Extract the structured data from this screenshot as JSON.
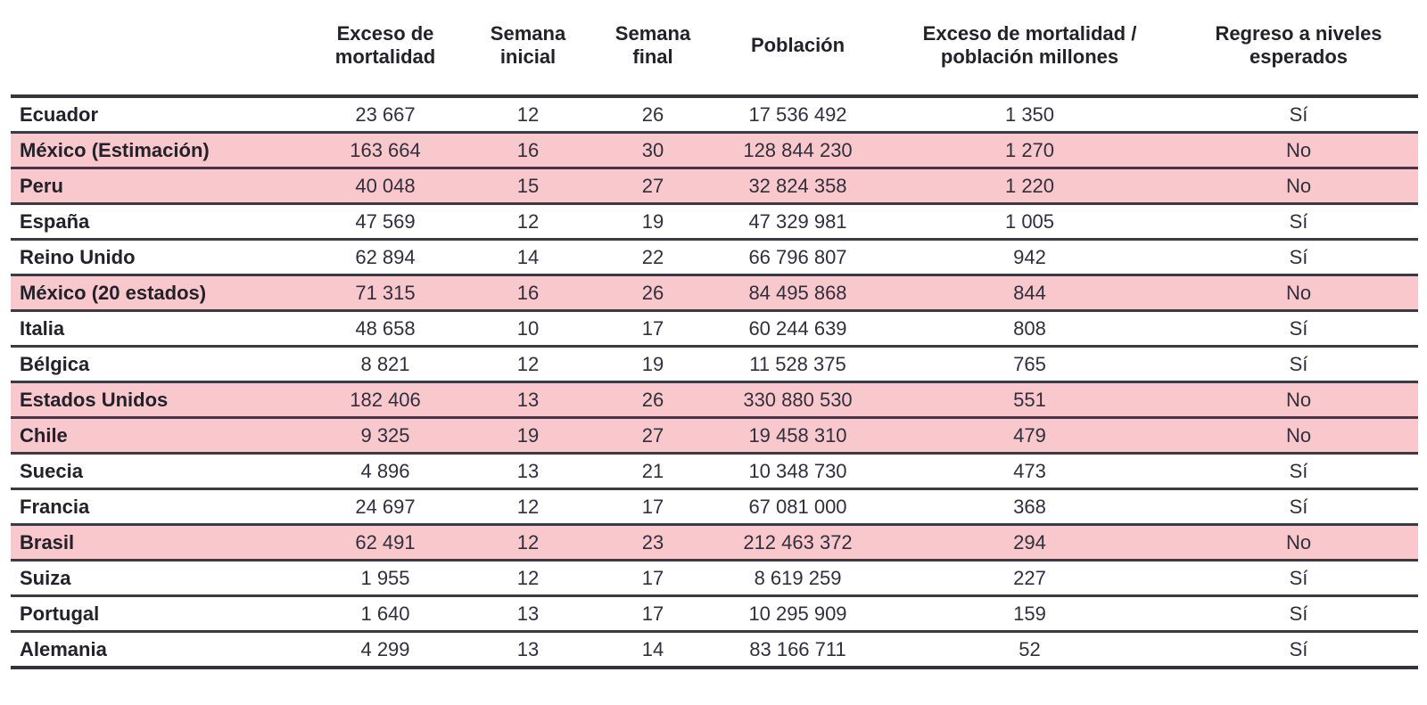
{
  "colors": {
    "background": "#ffffff",
    "highlight_pink": "#f8c8cd",
    "rule_dark": "#35333d",
    "rule_row": "#3c3a44",
    "text_bold": "#232129",
    "text_regular": "#312f3c"
  },
  "table": {
    "columns": [
      {
        "key": "country",
        "label": ""
      },
      {
        "key": "excess",
        "label": "Exceso de mortalidad"
      },
      {
        "key": "week_start",
        "label": "Semana inicial"
      },
      {
        "key": "week_end",
        "label": "Semana final"
      },
      {
        "key": "population",
        "label": "Población"
      },
      {
        "key": "excess_per_million",
        "label": "Exceso de mortalidad / población millones"
      },
      {
        "key": "returned",
        "label": "Regreso a niveles esperados"
      }
    ],
    "rows": [
      {
        "country": "Ecuador",
        "excess": "23 667",
        "week_start": "12",
        "week_end": "26",
        "population": "17 536 492",
        "excess_per_million": "1 350",
        "returned": "Sí",
        "highlighted": false
      },
      {
        "country": "México (Estimación)",
        "excess": "163 664",
        "week_start": "16",
        "week_end": "30",
        "population": "128 844 230",
        "excess_per_million": "1 270",
        "returned": "No",
        "highlighted": true
      },
      {
        "country": "Peru",
        "excess": "40 048",
        "week_start": "15",
        "week_end": "27",
        "population": "32 824 358",
        "excess_per_million": "1 220",
        "returned": "No",
        "highlighted": true
      },
      {
        "country": "España",
        "excess": "47 569",
        "week_start": "12",
        "week_end": "19",
        "population": "47 329 981",
        "excess_per_million": "1 005",
        "returned": "Sí",
        "highlighted": false
      },
      {
        "country": "Reino Unido",
        "excess": "62 894",
        "week_start": "14",
        "week_end": "22",
        "population": "66 796 807",
        "excess_per_million": "942",
        "returned": "Sí",
        "highlighted": false
      },
      {
        "country": "México (20 estados)",
        "excess": "71 315",
        "week_start": "16",
        "week_end": "26",
        "population": "84 495 868",
        "excess_per_million": "844",
        "returned": "No",
        "highlighted": true
      },
      {
        "country": "Italia",
        "excess": "48 658",
        "week_start": "10",
        "week_end": "17",
        "population": "60 244 639",
        "excess_per_million": "808",
        "returned": "Sí",
        "highlighted": false
      },
      {
        "country": "Bélgica",
        "excess": "8 821",
        "week_start": "12",
        "week_end": "19",
        "population": "11 528 375",
        "excess_per_million": "765",
        "returned": "Sí",
        "highlighted": false
      },
      {
        "country": "Estados Unidos",
        "excess": "182 406",
        "week_start": "13",
        "week_end": "26",
        "population": "330 880 530",
        "excess_per_million": "551",
        "returned": "No",
        "highlighted": true
      },
      {
        "country": "Chile",
        "excess": "9 325",
        "week_start": "19",
        "week_end": "27",
        "population": "19 458 310",
        "excess_per_million": "479",
        "returned": "No",
        "highlighted": true
      },
      {
        "country": "Suecia",
        "excess": "4 896",
        "week_start": "13",
        "week_end": "21",
        "population": "10 348 730",
        "excess_per_million": "473",
        "returned": "Sí",
        "highlighted": false
      },
      {
        "country": "Francia",
        "excess": "24 697",
        "week_start": "12",
        "week_end": "17",
        "population": "67 081 000",
        "excess_per_million": "368",
        "returned": "Sí",
        "highlighted": false
      },
      {
        "country": "Brasil",
        "excess": "62 491",
        "week_start": "12",
        "week_end": "23",
        "population": "212 463 372",
        "excess_per_million": "294",
        "returned": "No",
        "highlighted": true
      },
      {
        "country": "Suiza",
        "excess": "1 955",
        "week_start": "12",
        "week_end": "17",
        "population": "8 619 259",
        "excess_per_million": "227",
        "returned": "Sí",
        "highlighted": false
      },
      {
        "country": "Portugal",
        "excess": "1 640",
        "week_start": "13",
        "week_end": "17",
        "population": "10 295 909",
        "excess_per_million": "159",
        "returned": "Sí",
        "highlighted": false
      },
      {
        "country": "Alemania",
        "excess": "4 299",
        "week_start": "13",
        "week_end": "14",
        "population": "83 166 711",
        "excess_per_million": "52",
        "returned": "Sí",
        "highlighted": false
      }
    ]
  },
  "chart_data": {
    "type": "table",
    "columns": [
      "",
      "Exceso de mortalidad",
      "Semana inicial",
      "Semana final",
      "Población",
      "Exceso de mortalidad / población millones",
      "Regreso a niveles esperados"
    ],
    "rows": [
      [
        "Ecuador",
        23667,
        12,
        26,
        17536492,
        1350,
        "Sí"
      ],
      [
        "México (Estimación)",
        163664,
        16,
        30,
        128844230,
        1270,
        "No"
      ],
      [
        "Peru",
        40048,
        15,
        27,
        32824358,
        1220,
        "No"
      ],
      [
        "España",
        47569,
        12,
        19,
        47329981,
        1005,
        "Sí"
      ],
      [
        "Reino Unido",
        62894,
        14,
        22,
        66796807,
        942,
        "Sí"
      ],
      [
        "México (20 estados)",
        71315,
        16,
        26,
        84495868,
        844,
        "No"
      ],
      [
        "Italia",
        48658,
        10,
        17,
        60244639,
        808,
        "Sí"
      ],
      [
        "Bélgica",
        8821,
        12,
        19,
        11528375,
        765,
        "Sí"
      ],
      [
        "Estados Unidos",
        182406,
        13,
        26,
        330880530,
        551,
        "No"
      ],
      [
        "Chile",
        9325,
        19,
        27,
        19458310,
        479,
        "No"
      ],
      [
        "Suecia",
        4896,
        13,
        21,
        10348730,
        473,
        "Sí"
      ],
      [
        "Francia",
        24697,
        12,
        17,
        67081000,
        368,
        "Sí"
      ],
      [
        "Brasil",
        62491,
        12,
        23,
        212463372,
        294,
        "No"
      ],
      [
        "Suiza",
        1955,
        12,
        17,
        8619259,
        227,
        "Sí"
      ],
      [
        "Portugal",
        1640,
        13,
        17,
        10295909,
        159,
        "Sí"
      ],
      [
        "Alemania",
        4299,
        13,
        14,
        83166711,
        52,
        "Sí"
      ]
    ],
    "highlighted_rows": [
      "México (Estimación)",
      "Peru",
      "México (20 estados)",
      "Estados Unidos",
      "Chile",
      "Brasil"
    ],
    "highlight_color": "#f8c8cd",
    "sort": "Exceso de mortalidad / población millones descending",
    "grid": "horizontal rules only"
  }
}
